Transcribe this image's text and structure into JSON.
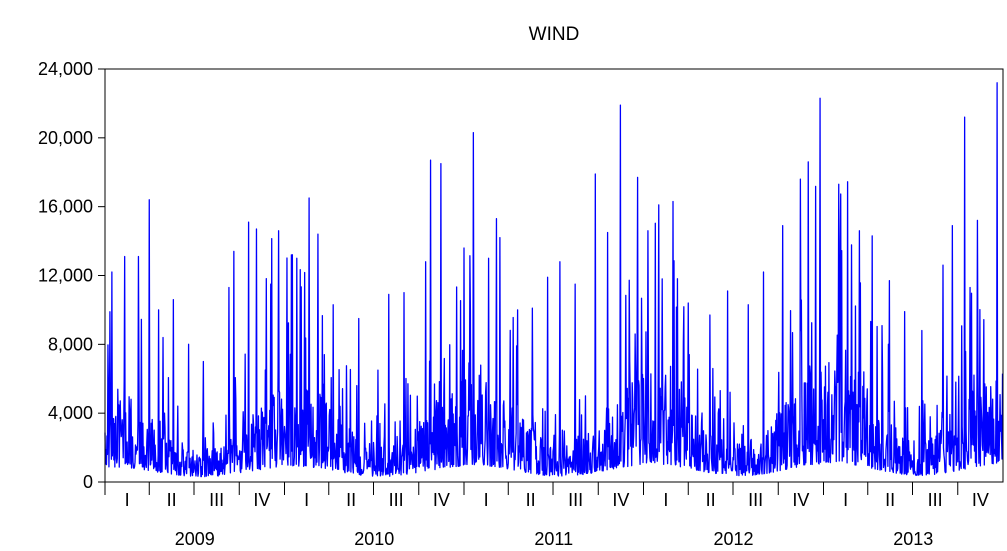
{
  "chart_data": {
    "type": "line",
    "title": "WIND",
    "xlabel": "",
    "ylabel": "",
    "ylim": [
      0,
      24000
    ],
    "yticks": [
      {
        "value": 0,
        "label": "0"
      },
      {
        "value": 4000,
        "label": "4,000"
      },
      {
        "value": 8000,
        "label": "8,000"
      },
      {
        "value": 12000,
        "label": "12,000"
      },
      {
        "value": 16000,
        "label": "16,000"
      },
      {
        "value": 20000,
        "label": "20,000"
      },
      {
        "value": 24000,
        "label": "24,000"
      }
    ],
    "xlim": [
      "2009-01-01",
      "2013-12-31"
    ],
    "years": [
      "2009",
      "2010",
      "2011",
      "2012",
      "2013"
    ],
    "quarters": [
      "I",
      "II",
      "III",
      "IV"
    ],
    "grid": false,
    "legend": "none",
    "series": [
      {
        "color": "#0000ff",
        "frequency": "daily",
        "x_start": "2009-01-01",
        "x_end": "2013-12-31",
        "approx_points": 1826,
        "approx_range": [
          300,
          23200
        ],
        "points": [
          [
            "2009-01-15",
            12200
          ],
          [
            "2009-02-10",
            13100
          ],
          [
            "2009-03-10",
            13100
          ],
          [
            "2009-04-01",
            16400
          ],
          [
            "2009-04-20",
            10000
          ],
          [
            "2009-05-20",
            10600
          ],
          [
            "2009-06-20",
            8000
          ],
          [
            "2009-07-20",
            7000
          ],
          [
            "2009-09-10",
            11300
          ],
          [
            "2009-09-20",
            13400
          ],
          [
            "2009-10-20",
            15100
          ],
          [
            "2009-11-05",
            14700
          ],
          [
            "2009-12-20",
            14600
          ],
          [
            "2010-01-15",
            13200
          ],
          [
            "2010-02-20",
            16500
          ],
          [
            "2010-03-10",
            14400
          ],
          [
            "2010-04-10",
            10300
          ],
          [
            "2010-06-01",
            9500
          ],
          [
            "2010-07-10",
            6500
          ],
          [
            "2010-08-01",
            10900
          ],
          [
            "2010-09-01",
            11000
          ],
          [
            "2010-10-15",
            12800
          ],
          [
            "2010-10-25",
            18700
          ],
          [
            "2010-11-15",
            18500
          ],
          [
            "2011-01-01",
            13600
          ],
          [
            "2011-01-20",
            20300
          ],
          [
            "2011-02-20",
            13000
          ],
          [
            "2011-03-15",
            14200
          ],
          [
            "2011-04-20",
            10000
          ],
          [
            "2011-05-20",
            10100
          ],
          [
            "2011-06-20",
            11900
          ],
          [
            "2011-07-15",
            12800
          ],
          [
            "2011-08-15",
            11500
          ],
          [
            "2011-09-25",
            17900
          ],
          [
            "2011-10-20",
            14500
          ],
          [
            "2011-11-15",
            21900
          ],
          [
            "2011-12-20",
            17700
          ],
          [
            "2012-01-10",
            14600
          ],
          [
            "2012-02-01",
            16100
          ],
          [
            "2012-03-01",
            16300
          ],
          [
            "2012-04-01",
            10400
          ],
          [
            "2012-05-15",
            9700
          ],
          [
            "2012-06-20",
            11100
          ],
          [
            "2012-08-01",
            10300
          ],
          [
            "2012-09-01",
            12200
          ],
          [
            "2012-10-10",
            14900
          ],
          [
            "2012-11-15",
            17600
          ],
          [
            "2012-12-01",
            18600
          ],
          [
            "2012-12-25",
            22300
          ],
          [
            "2013-02-01",
            17300
          ],
          [
            "2013-03-15",
            14600
          ],
          [
            "2013-04-10",
            14300
          ],
          [
            "2013-05-15",
            11700
          ],
          [
            "2013-06-15",
            9900
          ],
          [
            "2013-07-20",
            8800
          ],
          [
            "2013-09-01",
            12600
          ],
          [
            "2013-09-20",
            14900
          ],
          [
            "2013-10-15",
            21200
          ],
          [
            "2013-11-10",
            15200
          ],
          [
            "2013-12-20",
            23200
          ]
        ]
      }
    ]
  }
}
